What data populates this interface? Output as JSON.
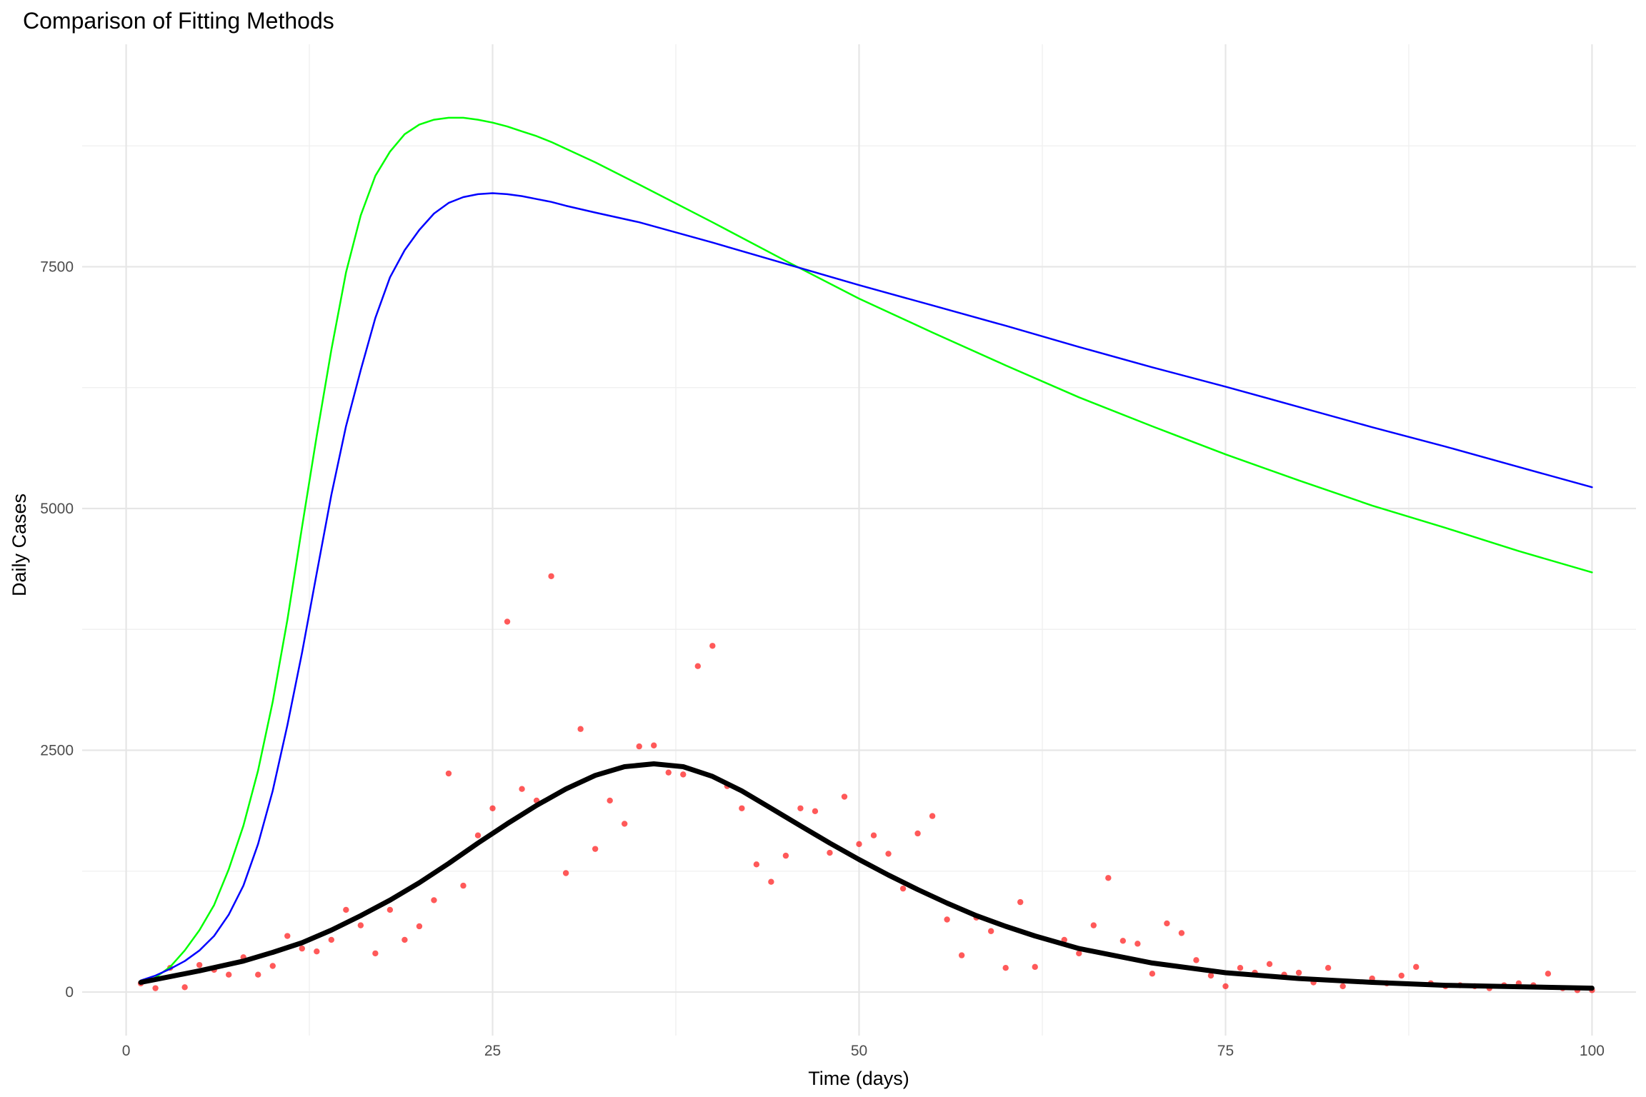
{
  "chart_data": {
    "type": "line",
    "title": "Comparison of Fitting Methods",
    "xlabel": "Time (days)",
    "ylabel": "Daily Cases",
    "xlim": [
      -3,
      103
    ],
    "ylim": [
      -450,
      9800
    ],
    "x_ticks": [
      0,
      25,
      50,
      75,
      100
    ],
    "y_ticks": [
      0,
      2500,
      5000,
      7500
    ],
    "x_tick_labels": [
      "0",
      "25",
      "50",
      "75",
      "100"
    ],
    "y_tick_labels": [
      "0",
      "2500",
      "5000",
      "7500"
    ],
    "grid": true,
    "legend": "none",
    "series": [
      {
        "kind": "points",
        "color": "#ff0000",
        "x": [
          1,
          2,
          3,
          4,
          5,
          6,
          7,
          8,
          9,
          10,
          11,
          12,
          13,
          14,
          15,
          16,
          17,
          18,
          19,
          20,
          21,
          22,
          23,
          24,
          25,
          26,
          27,
          28,
          29,
          30,
          31,
          32,
          33,
          34,
          35,
          36,
          37,
          38,
          39,
          40,
          41,
          42,
          43,
          44,
          45,
          46,
          47,
          48,
          49,
          50,
          51,
          52,
          53,
          54,
          55,
          56,
          57,
          58,
          59,
          60,
          61,
          62,
          64,
          65,
          66,
          67,
          68,
          69,
          70,
          71,
          72,
          73,
          74,
          75,
          76,
          77,
          78,
          79,
          80,
          81,
          82,
          83,
          85,
          86,
          87,
          88,
          89,
          90,
          91,
          92,
          93,
          94,
          95,
          96,
          97,
          98,
          99,
          100
        ],
        "y": [
          90,
          40,
          250,
          50,
          280,
          230,
          180,
          360,
          180,
          270,
          580,
          450,
          420,
          540,
          850,
          690,
          400,
          850,
          540,
          680,
          950,
          2260,
          1100,
          1620,
          1900,
          3830,
          2100,
          1980,
          4300,
          1230,
          2720,
          1480,
          1980,
          1740,
          2540,
          2550,
          2270,
          2250,
          3370,
          3580,
          2130,
          1900,
          1320,
          1140,
          1410,
          1900,
          1870,
          1440,
          2020,
          1530,
          1620,
          1430,
          1070,
          1640,
          1820,
          750,
          380,
          770,
          630,
          250,
          930,
          260,
          540,
          400,
          690,
          1180,
          530,
          500,
          190,
          710,
          610,
          330,
          170,
          60,
          250,
          200,
          290,
          180,
          200,
          100,
          250,
          60,
          140,
          90,
          170,
          260,
          90,
          60,
          70,
          60,
          40,
          70,
          90,
          70,
          190,
          40,
          20,
          20
        ]
      },
      {
        "kind": "line",
        "color": "#00ff00",
        "width": 2.5,
        "x": [
          1,
          2,
          3,
          4,
          5,
          6,
          7,
          8,
          9,
          10,
          11,
          12,
          13,
          14,
          15,
          16,
          17,
          18,
          19,
          20,
          21,
          22,
          23,
          24,
          25,
          26,
          27,
          28,
          29,
          30,
          32,
          35,
          40,
          45,
          50,
          55,
          60,
          65,
          70,
          75,
          80,
          85,
          90,
          95,
          100
        ],
        "y": [
          90,
          150,
          260,
          430,
          640,
          900,
          1270,
          1720,
          2290,
          3000,
          3850,
          4810,
          5750,
          6640,
          7440,
          8030,
          8440,
          8690,
          8870,
          8970,
          9020,
          9040,
          9040,
          9020,
          8990,
          8950,
          8900,
          8850,
          8790,
          8720,
          8580,
          8350,
          7960,
          7560,
          7170,
          6820,
          6480,
          6150,
          5850,
          5560,
          5290,
          5030,
          4800,
          4560,
          4340
        ]
      },
      {
        "kind": "line",
        "color": "#0000ff",
        "width": 2.5,
        "x": [
          1,
          2,
          3,
          4,
          5,
          6,
          7,
          8,
          9,
          10,
          11,
          12,
          13,
          14,
          15,
          16,
          17,
          18,
          19,
          20,
          21,
          22,
          23,
          24,
          25,
          26,
          27,
          28,
          29,
          30,
          32,
          35,
          40,
          45,
          50,
          55,
          60,
          65,
          70,
          75,
          80,
          85,
          90,
          95,
          100
        ],
        "y": [
          120,
          170,
          240,
          320,
          430,
          580,
          800,
          1100,
          1530,
          2080,
          2760,
          3510,
          4330,
          5140,
          5850,
          6430,
          6970,
          7390,
          7670,
          7880,
          8050,
          8160,
          8220,
          8250,
          8260,
          8250,
          8230,
          8200,
          8170,
          8130,
          8060,
          7960,
          7750,
          7530,
          7310,
          7100,
          6890,
          6670,
          6460,
          6260,
          6050,
          5840,
          5640,
          5430,
          5220
        ]
      },
      {
        "kind": "line",
        "color": "#000000",
        "width": 7,
        "x": [
          1,
          3,
          5,
          8,
          10,
          12,
          14,
          16,
          18,
          20,
          22,
          24,
          26,
          28,
          30,
          32,
          34,
          36,
          38,
          40,
          42,
          44,
          46,
          48,
          50,
          52,
          54,
          56,
          58,
          60,
          62,
          65,
          70,
          75,
          80,
          85,
          90,
          95,
          100
        ],
        "y": [
          100,
          160,
          220,
          320,
          410,
          510,
          640,
          790,
          950,
          1130,
          1330,
          1540,
          1740,
          1930,
          2100,
          2240,
          2330,
          2360,
          2330,
          2230,
          2080,
          1900,
          1720,
          1540,
          1370,
          1210,
          1060,
          920,
          790,
          680,
          580,
          450,
          300,
          200,
          140,
          100,
          70,
          55,
          40
        ]
      }
    ]
  }
}
